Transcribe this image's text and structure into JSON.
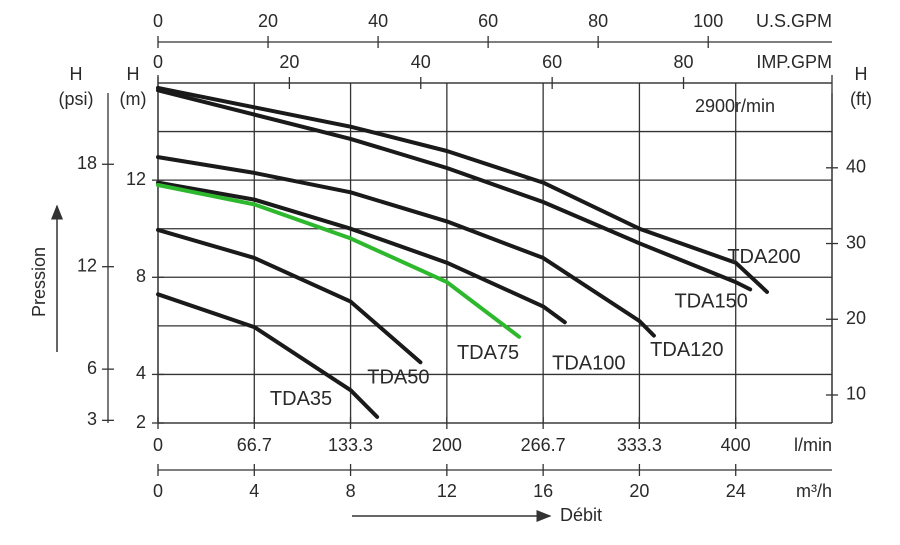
{
  "chart_data": {
    "type": "line",
    "annotation": "2900r/min",
    "xlabel": "Débit",
    "ylabel": "Pression",
    "x_unit": "m³/h",
    "y_unit": [
      "H",
      "(m)"
    ],
    "xlim": [
      0,
      28
    ],
    "ylim": [
      2,
      16
    ],
    "xticks": [
      0,
      4,
      8,
      12,
      16,
      20,
      24
    ],
    "yticks": [
      2,
      4,
      8,
      12
    ],
    "xgrid": [
      4,
      8,
      12,
      16,
      20,
      24
    ],
    "ygrid": [
      4,
      6,
      8,
      10,
      12,
      14
    ],
    "x_top": {
      "label": "U.S.GPM",
      "lim": [
        0,
        122.5
      ],
      "ticks": [
        0,
        20,
        40,
        60,
        80,
        100
      ]
    },
    "x_top2": {
      "label": "IMP.GPM",
      "lim": [
        0,
        102.6
      ],
      "ticks": [
        0,
        20,
        40,
        60,
        80
      ]
    },
    "x_bottom2": {
      "label": "l/min",
      "lim": [
        0,
        466.7
      ],
      "ticks": [
        0,
        66.7,
        133.3,
        200,
        266.7,
        333.3,
        400
      ]
    },
    "y_left2": {
      "label": [
        "H",
        "(psi)"
      ],
      "lim": [
        2.845,
        22.76
      ],
      "ticks": [
        3,
        6,
        12,
        18
      ]
    },
    "y_right": {
      "label": [
        "H",
        "(ft)"
      ],
      "lim": [
        6.3,
        51.2
      ],
      "ticks": [
        10,
        20,
        30,
        40
      ]
    },
    "series": [
      {
        "name": "TDA200",
        "color": "#1a1a1a",
        "x": [
          0,
          4,
          8,
          12,
          16,
          20,
          24,
          25.3
        ],
        "values": [
          15.8,
          15.0,
          14.2,
          13.2,
          11.9,
          10.0,
          8.6,
          7.4
        ]
      },
      {
        "name": "TDA150",
        "color": "#1a1a1a",
        "x": [
          0,
          4,
          8,
          12,
          16,
          20,
          24,
          24.6
        ],
        "values": [
          15.7,
          14.7,
          13.7,
          12.5,
          11.1,
          9.4,
          7.8,
          7.5
        ]
      },
      {
        "name": "TDA120",
        "color": "#1a1a1a",
        "x": [
          0,
          4,
          8,
          12,
          16,
          20,
          20.6
        ],
        "values": [
          12.95,
          12.3,
          11.5,
          10.3,
          8.8,
          6.2,
          5.6
        ]
      },
      {
        "name": "TDA100",
        "color": "#1a1a1a",
        "x": [
          0,
          4,
          8,
          12,
          16,
          16.9
        ],
        "values": [
          11.9,
          11.2,
          10.0,
          8.6,
          6.8,
          6.15
        ]
      },
      {
        "name": "TDA75",
        "color": "#2db82d",
        "x": [
          0,
          4,
          8,
          12,
          15
        ],
        "values": [
          11.8,
          11.0,
          9.6,
          7.8,
          5.55
        ]
      },
      {
        "name": "TDA50",
        "color": "#1a1a1a",
        "x": [
          0,
          4,
          8,
          10.9
        ],
        "values": [
          9.95,
          8.8,
          7.0,
          4.5
        ]
      },
      {
        "name": "TDA35",
        "color": "#1a1a1a",
        "x": [
          0,
          4,
          8,
          9.1
        ],
        "values": [
          7.3,
          5.95,
          3.35,
          2.25
        ]
      }
    ]
  }
}
